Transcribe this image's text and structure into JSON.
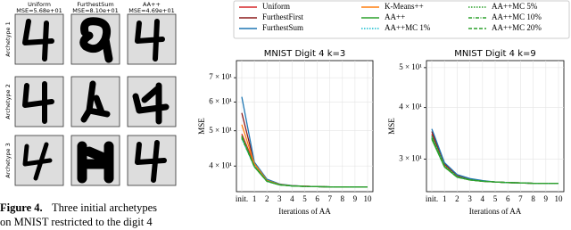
{
  "figure": {
    "columns": [
      {
        "title": "Uniform",
        "mse": "MSE=5.68e+01"
      },
      {
        "title": "FurthestSum",
        "mse": "MSE=8.10e+01"
      },
      {
        "title": "AA++",
        "mse": "MSE=4.69e+01"
      }
    ],
    "rows": [
      "Archetype 1",
      "Archetype 2",
      "Archetype 3"
    ],
    "caption": {
      "label": "Figure 4.",
      "lines": [
        "Three initial archetypes",
        "on MNIST restricted to the digit 4"
      ]
    }
  },
  "chart_data": [
    {
      "type": "line",
      "title": "MNIST Digit 4 k=3",
      "xlabel": "Iterations of AA",
      "ylabel": "MSE",
      "log_y": true,
      "categories": [
        "init.",
        "1",
        "2",
        "3",
        "4",
        "5",
        "6",
        "7",
        "8",
        "9",
        "10"
      ],
      "ylim": [
        34,
        78
      ],
      "yticks": [
        {
          "value": 40,
          "label": "4 × 10¹"
        },
        {
          "value": 50,
          "label": "5 × 10¹"
        },
        {
          "value": 60,
          "label": "6 × 10¹"
        },
        {
          "value": 70,
          "label": "7 × 10¹"
        }
      ],
      "series": [
        {
          "name": "Uniform",
          "color": "#d62728",
          "dash": "solid",
          "values": [
            49,
            40.5,
            36.5,
            35.6,
            35.3,
            35.2,
            35.1,
            35.05,
            35.02,
            35.01,
            35
          ]
        },
        {
          "name": "FurthestFirst",
          "color": "#8b1a1a",
          "dash": "solid",
          "values": [
            56,
            40.8,
            36.6,
            35.6,
            35.3,
            35.2,
            35.1,
            35.05,
            35.02,
            35.01,
            35
          ]
        },
        {
          "name": "FurthestSum",
          "color": "#1f77b4",
          "dash": "solid",
          "values": [
            62,
            41,
            36.8,
            35.7,
            35.35,
            35.2,
            35.1,
            35.05,
            35.02,
            35.01,
            35
          ]
        },
        {
          "name": "K-Means++",
          "color": "#ff7f0e",
          "dash": "solid",
          "values": [
            52,
            40.6,
            36.5,
            35.6,
            35.3,
            35.2,
            35.1,
            35.05,
            35.02,
            35.01,
            35
          ]
        },
        {
          "name": "AA++",
          "color": "#2ca02c",
          "dash": "solid",
          "values": [
            48,
            39.8,
            36.3,
            35.5,
            35.25,
            35.15,
            35.1,
            35.05,
            35.02,
            35.01,
            35
          ]
        },
        {
          "name": "AA++MC 1%",
          "color": "#17becf",
          "dash": "dotted",
          "values": [
            47.5,
            39.9,
            36.3,
            35.5,
            35.25,
            35.15,
            35.1,
            35.05,
            35.02,
            35.01,
            35
          ]
        },
        {
          "name": "AA++MC 5%",
          "color": "#2ca02c",
          "dash": "dotted",
          "values": [
            48.5,
            40,
            36.4,
            35.5,
            35.25,
            35.15,
            35.1,
            35.05,
            35.02,
            35.01,
            35
          ]
        },
        {
          "name": "AA++MC 10%",
          "color": "#2ca02c",
          "dash": "dashdot",
          "values": [
            48.2,
            39.9,
            36.3,
            35.5,
            35.25,
            35.15,
            35.1,
            35.05,
            35.02,
            35.01,
            35
          ]
        },
        {
          "name": "AA++MC 20%",
          "color": "#2ca02c",
          "dash": "dashed",
          "values": [
            47.8,
            39.8,
            36.3,
            35.5,
            35.25,
            35.15,
            35.1,
            35.05,
            35.02,
            35.01,
            35
          ]
        }
      ]
    },
    {
      "type": "line",
      "title": "MNIST Digit 4 k=9",
      "xlabel": "Iterations of AA",
      "ylabel": "MSE",
      "log_y": true,
      "categories": [
        "init.",
        "1",
        "2",
        "3",
        "4",
        "5",
        "6",
        "7",
        "8",
        "9",
        "10"
      ],
      "ylim": [
        25,
        52
      ],
      "yticks": [
        {
          "value": 30,
          "label": "3 × 10¹"
        },
        {
          "value": 40,
          "label": "4 × 10¹"
        },
        {
          "value": 50,
          "label": "5 × 10¹"
        }
      ],
      "series": [
        {
          "name": "Uniform",
          "color": "#d62728",
          "dash": "solid",
          "values": [
            34.5,
            29,
            27.3,
            26.8,
            26.5,
            26.4,
            26.3,
            26.25,
            26.2,
            26.2,
            26.2
          ]
        },
        {
          "name": "FurthestFirst",
          "color": "#8b1a1a",
          "dash": "solid",
          "values": [
            35,
            29.2,
            27.4,
            26.8,
            26.5,
            26.4,
            26.3,
            26.25,
            26.2,
            26.2,
            26.2
          ]
        },
        {
          "name": "FurthestSum",
          "color": "#1f77b4",
          "dash": "solid",
          "values": [
            35.5,
            29.4,
            27.5,
            26.9,
            26.6,
            26.4,
            26.3,
            26.25,
            26.2,
            26.2,
            26.2
          ]
        },
        {
          "name": "K-Means++",
          "color": "#ff7f0e",
          "dash": "solid",
          "values": [
            34,
            28.9,
            27.2,
            26.7,
            26.5,
            26.4,
            26.3,
            26.25,
            26.2,
            26.2,
            26.2
          ]
        },
        {
          "name": "AA++",
          "color": "#2ca02c",
          "dash": "solid",
          "values": [
            33.5,
            28.7,
            27.1,
            26.7,
            26.5,
            26.4,
            26.3,
            26.25,
            26.2,
            26.2,
            26.2
          ]
        },
        {
          "name": "AA++MC 1%",
          "color": "#17becf",
          "dash": "dotted",
          "values": [
            34,
            28.8,
            27.2,
            26.7,
            26.5,
            26.4,
            26.3,
            26.25,
            26.2,
            26.2,
            26.2
          ]
        },
        {
          "name": "AA++MC 5%",
          "color": "#2ca02c",
          "dash": "dotted",
          "values": [
            34.2,
            28.9,
            27.2,
            26.7,
            26.5,
            26.4,
            26.3,
            26.25,
            26.2,
            26.2,
            26.2
          ]
        },
        {
          "name": "AA++MC 10%",
          "color": "#2ca02c",
          "dash": "dashdot",
          "values": [
            33.8,
            28.8,
            27.1,
            26.7,
            26.5,
            26.4,
            26.3,
            26.25,
            26.2,
            26.2,
            26.2
          ]
        },
        {
          "name": "AA++MC 20%",
          "color": "#2ca02c",
          "dash": "dashed",
          "values": [
            33.7,
            28.7,
            27.1,
            26.7,
            26.5,
            26.4,
            26.3,
            26.25,
            26.2,
            26.2,
            26.2
          ]
        }
      ]
    }
  ]
}
